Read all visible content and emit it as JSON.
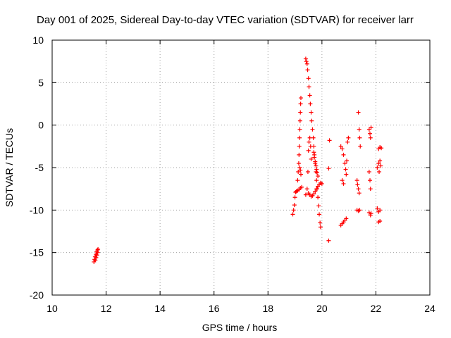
{
  "chart_data": {
    "type": "scatter",
    "title": "Day 001 of 2025, Sidereal Day-to-day VTEC variation (SDTVAR) for receiver larr",
    "xlabel": "GPS time / hours",
    "ylabel": "SDTVAR / TECUs",
    "xlim": [
      10,
      24
    ],
    "ylim": [
      -20,
      10
    ],
    "xticks": [
      10,
      12,
      14,
      16,
      18,
      20,
      22,
      24
    ],
    "yticks": [
      -20,
      -15,
      -10,
      -5,
      0,
      5,
      10
    ],
    "grid": true,
    "marker": "plus",
    "marker_color": "#ff0000",
    "series": [
      {
        "name": "SDTVAR",
        "points": [
          [
            11.55,
            -16.1
          ],
          [
            11.57,
            -15.8
          ],
          [
            11.59,
            -15.5
          ],
          [
            11.6,
            -15.9
          ],
          [
            11.62,
            -15.2
          ],
          [
            11.63,
            -15.6
          ],
          [
            11.65,
            -14.9
          ],
          [
            11.66,
            -15.3
          ],
          [
            11.68,
            -14.7
          ],
          [
            11.69,
            -15.0
          ],
          [
            11.7,
            -14.6
          ],
          [
            18.92,
            -10.5
          ],
          [
            18.95,
            -10.0
          ],
          [
            18.98,
            -9.4
          ],
          [
            19.0,
            -8.5
          ],
          [
            19.02,
            -7.9
          ],
          [
            19.05,
            -7.8
          ],
          [
            19.1,
            -7.7
          ],
          [
            19.15,
            -7.6
          ],
          [
            19.2,
            -7.4
          ],
          [
            19.25,
            -7.3
          ],
          [
            19.1,
            -6.5
          ],
          [
            19.12,
            -5.5
          ],
          [
            19.14,
            -4.5
          ],
          [
            19.15,
            -3.5
          ],
          [
            19.16,
            -2.5
          ],
          [
            19.17,
            -1.5
          ],
          [
            19.18,
            -0.5
          ],
          [
            19.19,
            0.5
          ],
          [
            19.2,
            1.5
          ],
          [
            19.21,
            2.5
          ],
          [
            19.22,
            3.2
          ],
          [
            19.18,
            -5.0
          ],
          [
            19.2,
            -5.3
          ],
          [
            19.22,
            -5.8
          ],
          [
            19.4,
            -8.2
          ],
          [
            19.45,
            -7.5
          ],
          [
            19.48,
            -5.5
          ],
          [
            19.5,
            -3.0
          ],
          [
            19.52,
            -2.0
          ],
          [
            19.55,
            -1.5
          ],
          [
            19.58,
            -2.5
          ],
          [
            19.6,
            -4.0
          ],
          [
            19.4,
            7.8
          ],
          [
            19.42,
            7.5
          ],
          [
            19.45,
            7.2
          ],
          [
            19.47,
            6.5
          ],
          [
            19.5,
            5.5
          ],
          [
            19.52,
            4.5
          ],
          [
            19.55,
            3.5
          ],
          [
            19.57,
            2.5
          ],
          [
            19.6,
            1.5
          ],
          [
            19.62,
            0.5
          ],
          [
            19.65,
            -0.5
          ],
          [
            19.68,
            -1.5
          ],
          [
            19.7,
            -2.5
          ],
          [
            19.72,
            -3.5
          ],
          [
            19.75,
            -4.5
          ],
          [
            19.78,
            -5.5
          ],
          [
            19.8,
            -6.5
          ],
          [
            19.82,
            -7.5
          ],
          [
            19.85,
            -8.5
          ],
          [
            19.88,
            -9.5
          ],
          [
            19.9,
            -10.5
          ],
          [
            19.93,
            -11.5
          ],
          [
            19.95,
            -12.0
          ],
          [
            19.5,
            -8.0
          ],
          [
            19.55,
            -8.2
          ],
          [
            19.6,
            -8.4
          ],
          [
            19.65,
            -8.3
          ],
          [
            19.7,
            -8.1
          ],
          [
            19.75,
            -7.8
          ],
          [
            19.8,
            -7.5
          ],
          [
            19.85,
            -7.2
          ],
          [
            19.9,
            -7.0
          ],
          [
            19.95,
            -6.8
          ],
          [
            20.0,
            -6.9
          ],
          [
            19.7,
            -3.2
          ],
          [
            19.72,
            -3.8
          ],
          [
            19.75,
            -4.3
          ],
          [
            19.78,
            -4.8
          ],
          [
            19.8,
            -5.2
          ],
          [
            19.82,
            -5.6
          ],
          [
            19.85,
            -6.0
          ],
          [
            20.25,
            -13.6
          ],
          [
            20.25,
            -5.1
          ],
          [
            20.28,
            -1.8
          ],
          [
            20.7,
            -2.5
          ],
          [
            20.75,
            -2.8
          ],
          [
            20.8,
            -3.5
          ],
          [
            20.85,
            -4.5
          ],
          [
            20.88,
            -5.2
          ],
          [
            20.9,
            -5.8
          ],
          [
            20.92,
            -4.2
          ],
          [
            20.95,
            -2.0
          ],
          [
            20.98,
            -1.5
          ],
          [
            20.7,
            -11.8
          ],
          [
            20.75,
            -11.6
          ],
          [
            20.8,
            -11.4
          ],
          [
            20.85,
            -11.2
          ],
          [
            20.9,
            -11.0
          ],
          [
            20.75,
            -6.5
          ],
          [
            20.8,
            -6.9
          ],
          [
            21.3,
            -6.5
          ],
          [
            21.32,
            -7.0
          ],
          [
            21.35,
            -7.5
          ],
          [
            21.38,
            -8.0
          ],
          [
            21.3,
            -10.0
          ],
          [
            21.35,
            -10.1
          ],
          [
            21.4,
            -10.0
          ],
          [
            21.35,
            1.5
          ],
          [
            21.38,
            -0.5
          ],
          [
            21.4,
            -1.5
          ],
          [
            21.42,
            -2.5
          ],
          [
            21.75,
            -0.5
          ],
          [
            21.78,
            -1.0
          ],
          [
            21.8,
            -1.5
          ],
          [
            21.82,
            -0.3
          ],
          [
            21.75,
            -5.5
          ],
          [
            21.78,
            -6.5
          ],
          [
            21.8,
            -7.5
          ],
          [
            21.75,
            -10.3
          ],
          [
            21.8,
            -10.6
          ],
          [
            21.82,
            -10.4
          ],
          [
            22.05,
            -5.0
          ],
          [
            22.1,
            -4.5
          ],
          [
            22.12,
            -5.5
          ],
          [
            22.15,
            -4.2
          ],
          [
            22.18,
            -4.8
          ],
          [
            22.1,
            -2.8
          ],
          [
            22.15,
            -2.6
          ],
          [
            22.2,
            -2.7
          ],
          [
            22.05,
            -9.8
          ],
          [
            22.1,
            -10.2
          ],
          [
            22.15,
            -10.0
          ],
          [
            22.1,
            -11.4
          ],
          [
            22.15,
            -11.3
          ]
        ]
      }
    ]
  }
}
